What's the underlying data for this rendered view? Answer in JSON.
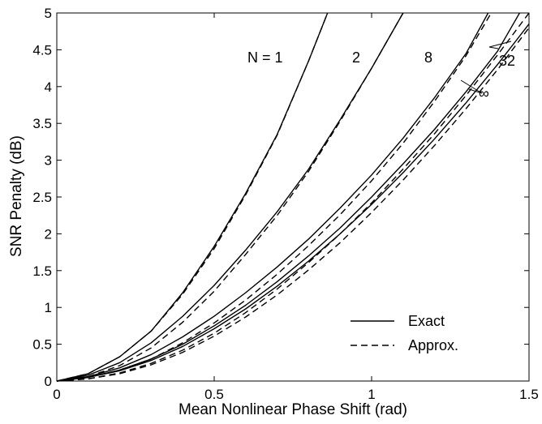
{
  "chart_data": {
    "type": "line",
    "title": "",
    "xlabel": "Mean Nonlinear Phase Shift (rad)",
    "ylabel": "SNR Penalty (dB)",
    "xlim": [
      0,
      1.5
    ],
    "ylim": [
      0,
      5
    ],
    "xticks": [
      0,
      0.5,
      1,
      1.5
    ],
    "xtick_labels": [
      "0",
      "0.5",
      "1",
      "1.5"
    ],
    "yticks": [
      0,
      0.5,
      1,
      1.5,
      2,
      2.5,
      3,
      3.5,
      4,
      4.5,
      5
    ],
    "ytick_labels": [
      "0",
      "0.5",
      "1",
      "1.5",
      "2",
      "2.5",
      "3",
      "3.5",
      "4",
      "4.5",
      "5"
    ],
    "grid": false,
    "legend_position": "bottom-right",
    "legend": [
      {
        "label": "Exact",
        "style": "solid"
      },
      {
        "label": "Approx.",
        "style": "dashed"
      }
    ],
    "annotations": [
      "N = 1",
      "2",
      "8",
      "32",
      "∞"
    ],
    "series": [
      {
        "group": "1",
        "style": "solid",
        "x": [
          0,
          0.1,
          0.2,
          0.3,
          0.4,
          0.5,
          0.6,
          0.7,
          0.8,
          0.86
        ],
        "y": [
          0,
          0.1,
          0.33,
          0.68,
          1.2,
          1.83,
          2.55,
          3.35,
          4.35,
          5.0
        ]
      },
      {
        "group": "1",
        "style": "dashed",
        "x": [
          0,
          0.1,
          0.2,
          0.3,
          0.4,
          0.5,
          0.6,
          0.7,
          0.8,
          0.86
        ],
        "y": [
          0,
          0.1,
          0.33,
          0.68,
          1.18,
          1.8,
          2.53,
          3.34,
          4.35,
          5.0
        ]
      },
      {
        "group": "2",
        "style": "solid",
        "x": [
          0,
          0.1,
          0.2,
          0.3,
          0.4,
          0.5,
          0.6,
          0.7,
          0.8,
          0.9,
          1.0,
          1.1
        ],
        "y": [
          0,
          0.08,
          0.25,
          0.52,
          0.88,
          1.3,
          1.78,
          2.3,
          2.88,
          3.55,
          4.25,
          5.0
        ]
      },
      {
        "group": "2",
        "style": "dashed",
        "x": [
          0,
          0.1,
          0.2,
          0.3,
          0.4,
          0.5,
          0.6,
          0.7,
          0.8,
          0.9,
          1.0,
          1.1
        ],
        "y": [
          0,
          0.06,
          0.21,
          0.45,
          0.8,
          1.22,
          1.72,
          2.25,
          2.85,
          3.53,
          4.25,
          5.0
        ]
      },
      {
        "group": "8",
        "style": "solid",
        "x": [
          0,
          0.1,
          0.2,
          0.3,
          0.4,
          0.5,
          0.6,
          0.7,
          0.8,
          0.9,
          1.0,
          1.1,
          1.2,
          1.3,
          1.37
        ],
        "y": [
          0,
          0.06,
          0.18,
          0.36,
          0.6,
          0.88,
          1.2,
          1.55,
          1.93,
          2.35,
          2.8,
          3.3,
          3.85,
          4.45,
          5.0
        ]
      },
      {
        "group": "8",
        "style": "dashed",
        "x": [
          0,
          0.1,
          0.2,
          0.3,
          0.4,
          0.5,
          0.6,
          0.7,
          0.8,
          0.9,
          1.0,
          1.1,
          1.2,
          1.3,
          1.38
        ],
        "y": [
          0,
          0.05,
          0.15,
          0.3,
          0.52,
          0.79,
          1.1,
          1.45,
          1.84,
          2.26,
          2.72,
          3.23,
          3.8,
          4.42,
          5.0
        ]
      },
      {
        "group": "32",
        "style": "solid",
        "x": [
          0,
          0.1,
          0.2,
          0.3,
          0.4,
          0.5,
          0.6,
          0.7,
          0.8,
          0.9,
          1.0,
          1.1,
          1.2,
          1.3,
          1.4,
          1.47
        ],
        "y": [
          0,
          0.05,
          0.15,
          0.3,
          0.5,
          0.75,
          1.03,
          1.35,
          1.7,
          2.08,
          2.5,
          2.95,
          3.42,
          3.93,
          4.48,
          5.0
        ]
      },
      {
        "group": "32",
        "style": "dashed",
        "x": [
          0,
          0.1,
          0.2,
          0.3,
          0.4,
          0.5,
          0.6,
          0.7,
          0.8,
          0.9,
          1.0,
          1.1,
          1.2,
          1.3,
          1.4,
          1.5
        ],
        "y": [
          0,
          0.03,
          0.11,
          0.24,
          0.42,
          0.65,
          0.93,
          1.25,
          1.61,
          2.0,
          2.42,
          2.88,
          3.36,
          3.88,
          4.43,
          5.0
        ]
      },
      {
        "group": "∞",
        "style": "solid",
        "x": [
          0,
          0.1,
          0.2,
          0.3,
          0.4,
          0.5,
          0.6,
          0.7,
          0.8,
          0.9,
          1.0,
          1.1,
          1.2,
          1.3,
          1.4,
          1.5
        ],
        "y": [
          0,
          0.05,
          0.14,
          0.28,
          0.47,
          0.71,
          0.98,
          1.29,
          1.63,
          2.0,
          2.4,
          2.83,
          3.29,
          3.78,
          4.3,
          4.85
        ]
      },
      {
        "group": "∞",
        "style": "dashed",
        "x": [
          0,
          0.1,
          0.2,
          0.3,
          0.4,
          0.5,
          0.6,
          0.7,
          0.8,
          0.9,
          1.0,
          1.1,
          1.2,
          1.3,
          1.4,
          1.5
        ],
        "y": [
          0,
          0.03,
          0.1,
          0.22,
          0.39,
          0.61,
          0.87,
          1.17,
          1.51,
          1.88,
          2.29,
          2.73,
          3.2,
          3.7,
          4.23,
          4.8
        ]
      }
    ]
  }
}
